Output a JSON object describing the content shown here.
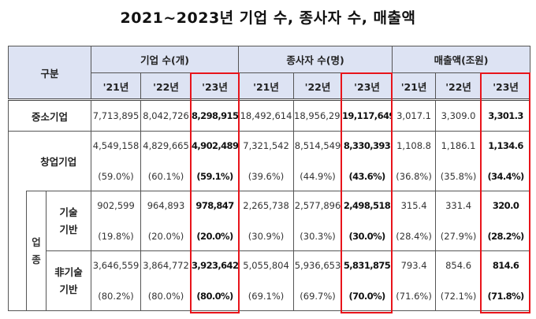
{
  "title": "2021~2023년 기업 수, 종사자 수, 매출액",
  "header": {
    "category": "구분",
    "groups": [
      "기업 수(개)",
      "종사자 수(명)",
      "매출액(조원)"
    ],
    "years": [
      "'21년",
      "'22년",
      "'23년"
    ]
  },
  "rows": [
    {
      "label": "중소기업",
      "values": [
        "7,713,895",
        "8,042,726",
        "8,298,915",
        "18,492,614",
        "18,956,294",
        "19,117,649",
        "3,017.1",
        "3,309.0",
        "3,301.3"
      ],
      "shares": []
    },
    {
      "label": "창업기업",
      "values": [
        "4,549,158",
        "4,829,665",
        "4,902,489",
        "7,321,542",
        "8,514,549",
        "8,330,393",
        "1,108.8",
        "1,186.1",
        "1,134.6"
      ],
      "shares": [
        "(59.0%)",
        "(60.1%)",
        "(59.1%)",
        "(39.6%)",
        "(44.9%)",
        "(43.6%)",
        "(36.8%)",
        "(35.8%)",
        "(34.4%)"
      ]
    },
    {
      "group": "업종",
      "label": "기술기반",
      "values": [
        "902,599",
        "964,893",
        "978,847",
        "2,265,738",
        "2,577,896",
        "2,498,518",
        "315.4",
        "331.4",
        "320.0"
      ],
      "shares": [
        "(19.8%)",
        "(20.0%)",
        "(20.0%)",
        "(30.9%)",
        "(30.3%)",
        "(30.0%)",
        "(28.4%)",
        "(27.9%)",
        "(28.2%)"
      ]
    },
    {
      "label": "非기술기반",
      "values": [
        "3,646,559",
        "3,864,772",
        "3,923,642",
        "5,055,804",
        "5,936,653",
        "5,831,875",
        "793.4",
        "854.6",
        "814.6"
      ],
      "shares": [
        "(80.2%)",
        "(80.0%)",
        "(80.0%)",
        "(69.1%)",
        "(69.7%)",
        "(70.0%)",
        "(71.6%)",
        "(72.1%)",
        "(71.8%)"
      ]
    }
  ],
  "highlight_color": "#e8141b"
}
